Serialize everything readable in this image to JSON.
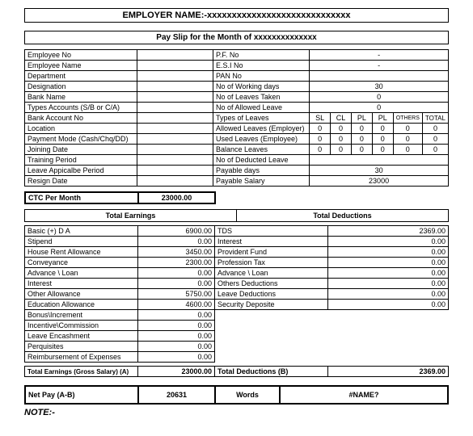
{
  "header": {
    "employer_label": "EMPLOYER NAME:-",
    "employer_value": "xxxxxxxxxxxxxxxxxxxxxxxxxxxxx",
    "payslip_label": "Pay Slip for the Month of",
    "payslip_month": "xxxxxxxxxxxxxx"
  },
  "left_fields": {
    "emp_no_l": "Employee No",
    "emp_name_l": "Employee Name",
    "dept_l": "Department",
    "desig_l": "Designation",
    "bank_name_l": "Bank Name",
    "acct_types_l": "Types Accounts (S/B or C/A)",
    "bank_acct_l": "Bank Account No",
    "location_l": "Location",
    "pay_mode_l": "Payment Mode (Cash/Chq/DD)",
    "join_date_l": "Joining Date",
    "training_l": "Training Period",
    "leave_app_l": "Leave Appicalbe Period",
    "resign_l": "Resign Date"
  },
  "right_fields": {
    "pf_l": "P.F. No",
    "pf_v": "-",
    "esi_l": "E.S.I No",
    "esi_v": "-",
    "pan_l": "PAN No",
    "pan_v": "",
    "wdays_l": "No of Working days",
    "wdays_v": "30",
    "leaves_taken_l": "No of Leaves Taken",
    "leaves_taken_v": "0",
    "allowed_leave_l": "No of Allowed Leave",
    "allowed_leave_v": "0",
    "types_leaves_l": "Types of Leaves",
    "leave_cols": [
      "SL",
      "CL",
      "PL",
      "PL",
      "OTHERS",
      "TOTAL"
    ],
    "allowed_emp_l": "Allowed Leaves (Employer)",
    "allowed_emp_v": [
      "0",
      "0",
      "0",
      "0",
      "0",
      "0"
    ],
    "used_emp_l": "Used Leaves (Employee)",
    "used_emp_v": [
      "0",
      "0",
      "0",
      "0",
      "0",
      "0"
    ],
    "balance_l": "Balance Leaves",
    "balance_v": [
      "0",
      "0",
      "0",
      "0",
      "0",
      "0"
    ],
    "deducted_l": "No of Deducted Leave",
    "payable_days_l": "Payable days",
    "payable_days_v": "30",
    "payable_sal_l": "Payable Salary",
    "payable_sal_v": "23000"
  },
  "ctc": {
    "label": "CTC Per Month",
    "value": "23000.00"
  },
  "sections": {
    "earnings": "Total Earnings",
    "deductions": "Total Deductions"
  },
  "earnings": [
    {
      "l": "Basic (+) D A",
      "v": "6900.00"
    },
    {
      "l": "Stipend",
      "v": "0.00"
    },
    {
      "l": "House Rent Allowance",
      "v": "3450.00"
    },
    {
      "l": "Conveyance",
      "v": "2300.00"
    },
    {
      "l": "Advance \\ Loan",
      "v": "0.00"
    },
    {
      "l": "Interest",
      "v": "0.00"
    },
    {
      "l": "Other Allowance",
      "v": "5750.00"
    },
    {
      "l": "Education Allowance",
      "v": "4600.00"
    },
    {
      "l": "Bonus\\Increment",
      "v": "0.00"
    },
    {
      "l": "Incentive\\Commission",
      "v": "0.00"
    },
    {
      "l": "Leave Encashment",
      "v": "0.00"
    },
    {
      "l": "Perquisites",
      "v": "0.00"
    },
    {
      "l": "Reimbursement of Expenses",
      "v": "0.00"
    }
  ],
  "deductions": [
    {
      "l": "TDS",
      "v": "2369.00"
    },
    {
      "l": "Interest",
      "v": "0.00"
    },
    {
      "l": "Provident Fund",
      "v": "0.00"
    },
    {
      "l": "Profession Tax",
      "v": "0.00"
    },
    {
      "l": "Advance \\ Loan",
      "v": "0.00"
    },
    {
      "l": "Others Deductions",
      "v": "0.00"
    },
    {
      "l": "Leave Deductions",
      "v": "0.00"
    },
    {
      "l": "Security Deposite",
      "v": "0.00"
    }
  ],
  "totals": {
    "earnings_l": "Total Earnings (Gross Salary) (A)",
    "earnings_v": "23000.00",
    "deductions_l": "Total Deductions (B)",
    "deductions_v": "2369.00",
    "netpay_l": "Net Pay (A-B)",
    "netpay_v": "20631",
    "words_l": "Words",
    "words_v": "#NAME?"
  },
  "note": "NOTE:-",
  "style": {
    "border_color": "#000000",
    "bg": "#ffffff",
    "font_family": "Arial",
    "base_fontsize": 9,
    "header_fontsize": 11
  }
}
